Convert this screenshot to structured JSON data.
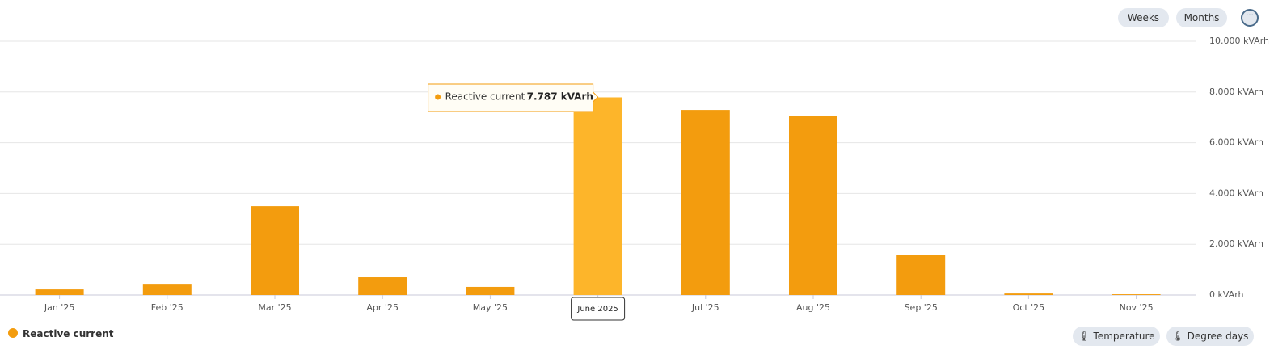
{
  "chart_data": {
    "type": "bar",
    "categories": [
      "Jan '25",
      "Feb '25",
      "Mar '25",
      "Apr '25",
      "May '25",
      "June 2025",
      "Jul '25",
      "Aug '25",
      "Sep '25",
      "Oct '25",
      "Nov '25"
    ],
    "series": [
      {
        "name": "Reactive current",
        "color": "#f39c0e",
        "values": [
          220,
          410,
          3500,
          700,
          320,
          7787,
          7290,
          7070,
          1590,
          60,
          30
        ],
        "value_labels": [
          null,
          null,
          null,
          null,
          null,
          "7.787 kVArh",
          null,
          null,
          null,
          null,
          null
        ]
      }
    ],
    "highlight_color": "#fdb52a",
    "ylim": [
      0,
      10000
    ],
    "yticks": [
      {
        "value": 0,
        "label": "0 kVArh"
      },
      {
        "value": 2000,
        "label": "2.000 kVArh"
      },
      {
        "value": 4000,
        "label": "4.000 kVArh"
      },
      {
        "value": 6000,
        "label": "6.000 kVArh"
      },
      {
        "value": 8000,
        "label": "8.000 kVArh"
      },
      {
        "value": 10000,
        "label": "10.000 kVArh"
      }
    ],
    "grid": true
  },
  "controls": {
    "period_buttons": [
      "Weeks",
      "Months"
    ],
    "active": "Months",
    "toggles": [
      "Temperature",
      "Degree days"
    ]
  }
}
